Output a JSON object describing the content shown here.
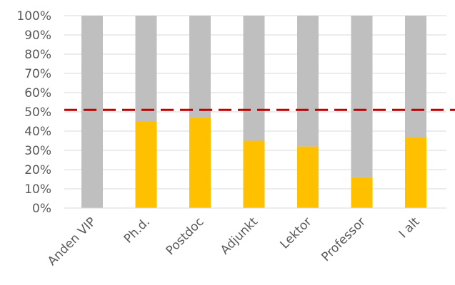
{
  "chart_data": {
    "type": "bar",
    "stacked": true,
    "categories": [
      "Anden VIP",
      "Ph.d.",
      "Postdoc",
      "Adjunkt",
      "Lektor",
      "Professor",
      "I alt"
    ],
    "series": [
      {
        "values": [
          0,
          45,
          47,
          35,
          32,
          16,
          37
        ],
        "color": "#FFC000"
      },
      {
        "values": [
          100,
          55,
          53,
          65,
          68,
          84,
          63
        ],
        "color": "#BFBFBF"
      }
    ],
    "ylim": [
      0,
      100
    ],
    "yticks": [
      "0%",
      "10%",
      "20%",
      "30%",
      "40%",
      "50%",
      "60%",
      "70%",
      "80%",
      "90%",
      "100%"
    ],
    "reference_line": {
      "value": 51,
      "color": "#C00000",
      "style": "dashed"
    },
    "grid": true,
    "legend": "none"
  }
}
